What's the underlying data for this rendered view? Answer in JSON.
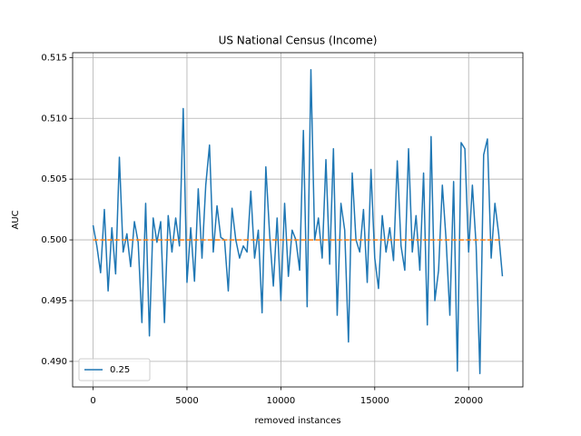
{
  "chart_data": {
    "type": "line",
    "title": "US National Census (Income)",
    "xlabel": "removed instances",
    "ylabel": "AUC",
    "x": [
      0,
      200,
      400,
      600,
      800,
      1000,
      1200,
      1400,
      1600,
      1800,
      2000,
      2200,
      2400,
      2600,
      2800,
      3000,
      3200,
      3400,
      3600,
      3800,
      4000,
      4200,
      4400,
      4600,
      4800,
      5000,
      5200,
      5400,
      5600,
      5800,
      6000,
      6200,
      6400,
      6600,
      6800,
      7000,
      7200,
      7400,
      7600,
      7800,
      8000,
      8200,
      8400,
      8600,
      8800,
      9000,
      9200,
      9400,
      9600,
      9800,
      10000,
      10200,
      10400,
      10600,
      10800,
      11000,
      11200,
      11400,
      11600,
      11800,
      12000,
      12200,
      12400,
      12600,
      12800,
      13000,
      13200,
      13400,
      13600,
      13800,
      14000,
      14200,
      14400,
      14600,
      14800,
      15000,
      15200,
      15400,
      15600,
      15800,
      16000,
      16200,
      16400,
      16600,
      16800,
      17000,
      17200,
      17400,
      17600,
      17800,
      18000,
      18200,
      18400,
      18600,
      18800,
      19000,
      19200,
      19400,
      19600,
      19800,
      20000,
      20200,
      20400,
      20600,
      20800,
      21000,
      21200,
      21400,
      21600,
      21800
    ],
    "series": [
      {
        "name": "0.25",
        "color": "#1f77b4",
        "linestyle": "solid",
        "values": [
          0.5012,
          0.4995,
          0.4973,
          0.5025,
          0.4958,
          0.501,
          0.4972,
          0.5068,
          0.499,
          0.5005,
          0.4978,
          0.5015,
          0.4998,
          0.4932,
          0.503,
          0.4921,
          0.5018,
          0.4998,
          0.5015,
          0.4932,
          0.502,
          0.499,
          0.5018,
          0.4995,
          0.5108,
          0.4965,
          0.501,
          0.4966,
          0.5042,
          0.4985,
          0.5045,
          0.5078,
          0.499,
          0.5028,
          0.5002,
          0.5,
          0.4958,
          0.5026,
          0.5,
          0.4985,
          0.4995,
          0.499,
          0.504,
          0.4985,
          0.5008,
          0.494,
          0.506,
          0.5005,
          0.4962,
          0.5018,
          0.495,
          0.503,
          0.497,
          0.5008,
          0.5,
          0.4975,
          0.509,
          0.4945,
          0.514,
          0.5,
          0.5018,
          0.4985,
          0.5066,
          0.498,
          0.5075,
          0.4938,
          0.503,
          0.5008,
          0.4916,
          0.5055,
          0.5,
          0.499,
          0.5025,
          0.4965,
          0.5058,
          0.4985,
          0.496,
          0.502,
          0.499,
          0.501,
          0.4983,
          0.5065,
          0.4995,
          0.4975,
          0.5075,
          0.499,
          0.502,
          0.4975,
          0.5055,
          0.493,
          0.5085,
          0.495,
          0.4975,
          0.5045,
          0.5,
          0.4938,
          0.5048,
          0.4892,
          0.508,
          0.5075,
          0.499,
          0.5045,
          0.4995,
          0.489,
          0.507,
          0.5083,
          0.4985,
          0.503,
          0.5005,
          0.497
        ]
      },
      {
        "color": "#ff7f0e",
        "linestyle": "dashed",
        "values": [
          0.5,
          0.5,
          0.5,
          0.5,
          0.5,
          0.5,
          0.5,
          0.5,
          0.5,
          0.5,
          0.5,
          0.5,
          0.5,
          0.5,
          0.5,
          0.5,
          0.5,
          0.5,
          0.5,
          0.5,
          0.5,
          0.5,
          0.5,
          0.5,
          0.5,
          0.5,
          0.5,
          0.5,
          0.5,
          0.5,
          0.5,
          0.5,
          0.5,
          0.5,
          0.5,
          0.5,
          0.5,
          0.5,
          0.5,
          0.5,
          0.5,
          0.5,
          0.5,
          0.5,
          0.5,
          0.5,
          0.5,
          0.5,
          0.5,
          0.5,
          0.5,
          0.5,
          0.5,
          0.5,
          0.5,
          0.5,
          0.5,
          0.5,
          0.5,
          0.5,
          0.5,
          0.5,
          0.5,
          0.5,
          0.5,
          0.5,
          0.5,
          0.5,
          0.5,
          0.5,
          0.5,
          0.5,
          0.5,
          0.5,
          0.5,
          0.5,
          0.5,
          0.5,
          0.5,
          0.5,
          0.5,
          0.5,
          0.5,
          0.5,
          0.5,
          0.5,
          0.5,
          0.5,
          0.5,
          0.5,
          0.5,
          0.5,
          0.5,
          0.5,
          0.5,
          0.5,
          0.5,
          0.5,
          0.5,
          0.5,
          0.5,
          0.5,
          0.5,
          0.5,
          0.5,
          0.5,
          0.5,
          0.5,
          0.5,
          0.5
        ]
      }
    ],
    "xlim": [
      -1090,
      22890
    ],
    "xticks": [
      0,
      5000,
      10000,
      15000,
      20000
    ],
    "ylim": [
      0.4879,
      0.5154
    ],
    "yticks": [
      {
        "value": 0.49,
        "label": "0.490"
      },
      0.495,
      {
        "value": 0.5,
        "label": "0.500"
      },
      0.505,
      {
        "value": 0.51,
        "label": "0.510"
      },
      0.515
    ],
    "grid": true,
    "legend": "lower left"
  }
}
